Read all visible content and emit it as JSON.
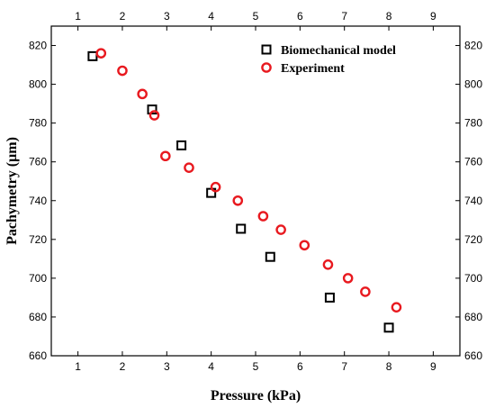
{
  "chart_data": {
    "type": "scatter",
    "xlabel": "Pressure (kPa)",
    "ylabel": "Pachymetry (µm)",
    "xlim": [
      0.4,
      9.6
    ],
    "ylim": [
      660,
      830
    ],
    "x_ticks": [
      1,
      2,
      3,
      4,
      5,
      6,
      7,
      8,
      9
    ],
    "y_ticks": [
      660,
      680,
      700,
      720,
      740,
      760,
      780,
      800,
      820
    ],
    "mirror_axes": true,
    "legend_position": "top-right",
    "series": [
      {
        "name": "Biomechanical model",
        "marker": "square",
        "color": "#000000",
        "points": [
          {
            "x": 1.33,
            "y": 814.5
          },
          {
            "x": 2.67,
            "y": 787
          },
          {
            "x": 3.33,
            "y": 768.5
          },
          {
            "x": 4.0,
            "y": 744
          },
          {
            "x": 4.67,
            "y": 725.5
          },
          {
            "x": 5.33,
            "y": 711
          },
          {
            "x": 6.67,
            "y": 690
          },
          {
            "x": 8.0,
            "y": 674.5
          }
        ]
      },
      {
        "name": "Experiment",
        "marker": "circle",
        "color": "#e8191f",
        "points": [
          {
            "x": 1.52,
            "y": 816
          },
          {
            "x": 2.0,
            "y": 807
          },
          {
            "x": 2.45,
            "y": 795
          },
          {
            "x": 2.72,
            "y": 784
          },
          {
            "x": 2.97,
            "y": 763
          },
          {
            "x": 3.5,
            "y": 757
          },
          {
            "x": 4.1,
            "y": 747
          },
          {
            "x": 4.6,
            "y": 740
          },
          {
            "x": 5.17,
            "y": 732
          },
          {
            "x": 5.57,
            "y": 725
          },
          {
            "x": 6.1,
            "y": 717
          },
          {
            "x": 6.63,
            "y": 707
          },
          {
            "x": 7.08,
            "y": 700
          },
          {
            "x": 7.47,
            "y": 693
          },
          {
            "x": 8.17,
            "y": 685
          }
        ]
      }
    ]
  }
}
